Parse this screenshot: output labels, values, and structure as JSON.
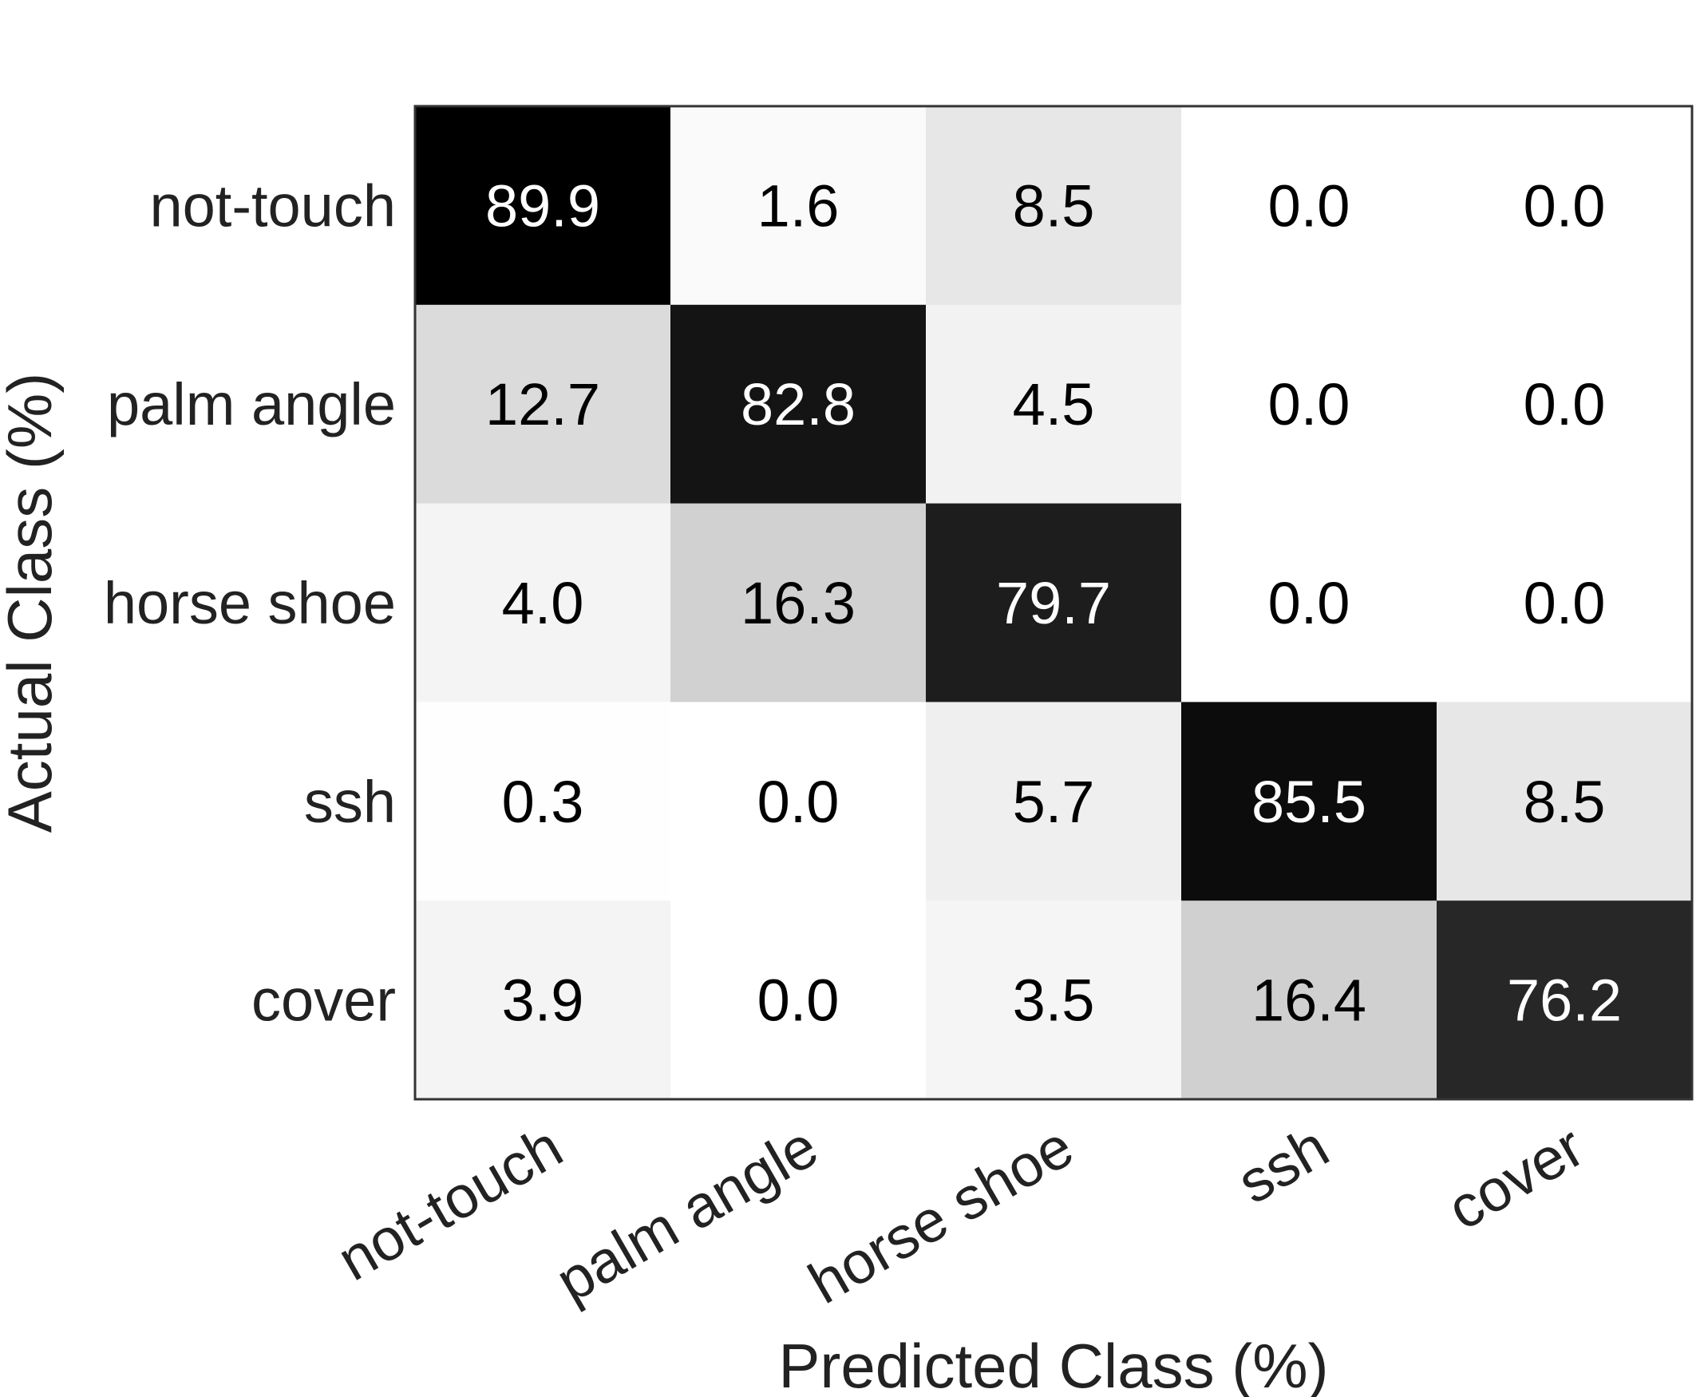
{
  "chart_data": {
    "type": "heatmap",
    "title": "",
    "xlabel": "Predicted Class (%)",
    "ylabel": "Actual Class (%)",
    "x_categories": [
      "not-touch",
      "palm angle",
      "horse shoe",
      "ssh",
      "cover"
    ],
    "y_categories": [
      "not-touch",
      "palm angle",
      "horse shoe",
      "ssh",
      "cover"
    ],
    "values": [
      [
        89.9,
        1.6,
        8.5,
        0.0,
        0.0
      ],
      [
        12.7,
        82.8,
        4.5,
        0.0,
        0.0
      ],
      [
        4.0,
        16.3,
        79.7,
        0.0,
        0.0
      ],
      [
        0.3,
        0.0,
        5.7,
        85.5,
        8.5
      ],
      [
        3.9,
        0.0,
        3.5,
        16.4,
        76.2
      ]
    ],
    "colormap": "gray-reversed",
    "value_range": [
      0,
      89.9
    ],
    "grid": false,
    "legend": "none",
    "colors": {
      "high": "#000000",
      "low": "#ffffff",
      "text_dark": "#000000",
      "text_light": "#ffffff",
      "frame": "#333333"
    }
  }
}
